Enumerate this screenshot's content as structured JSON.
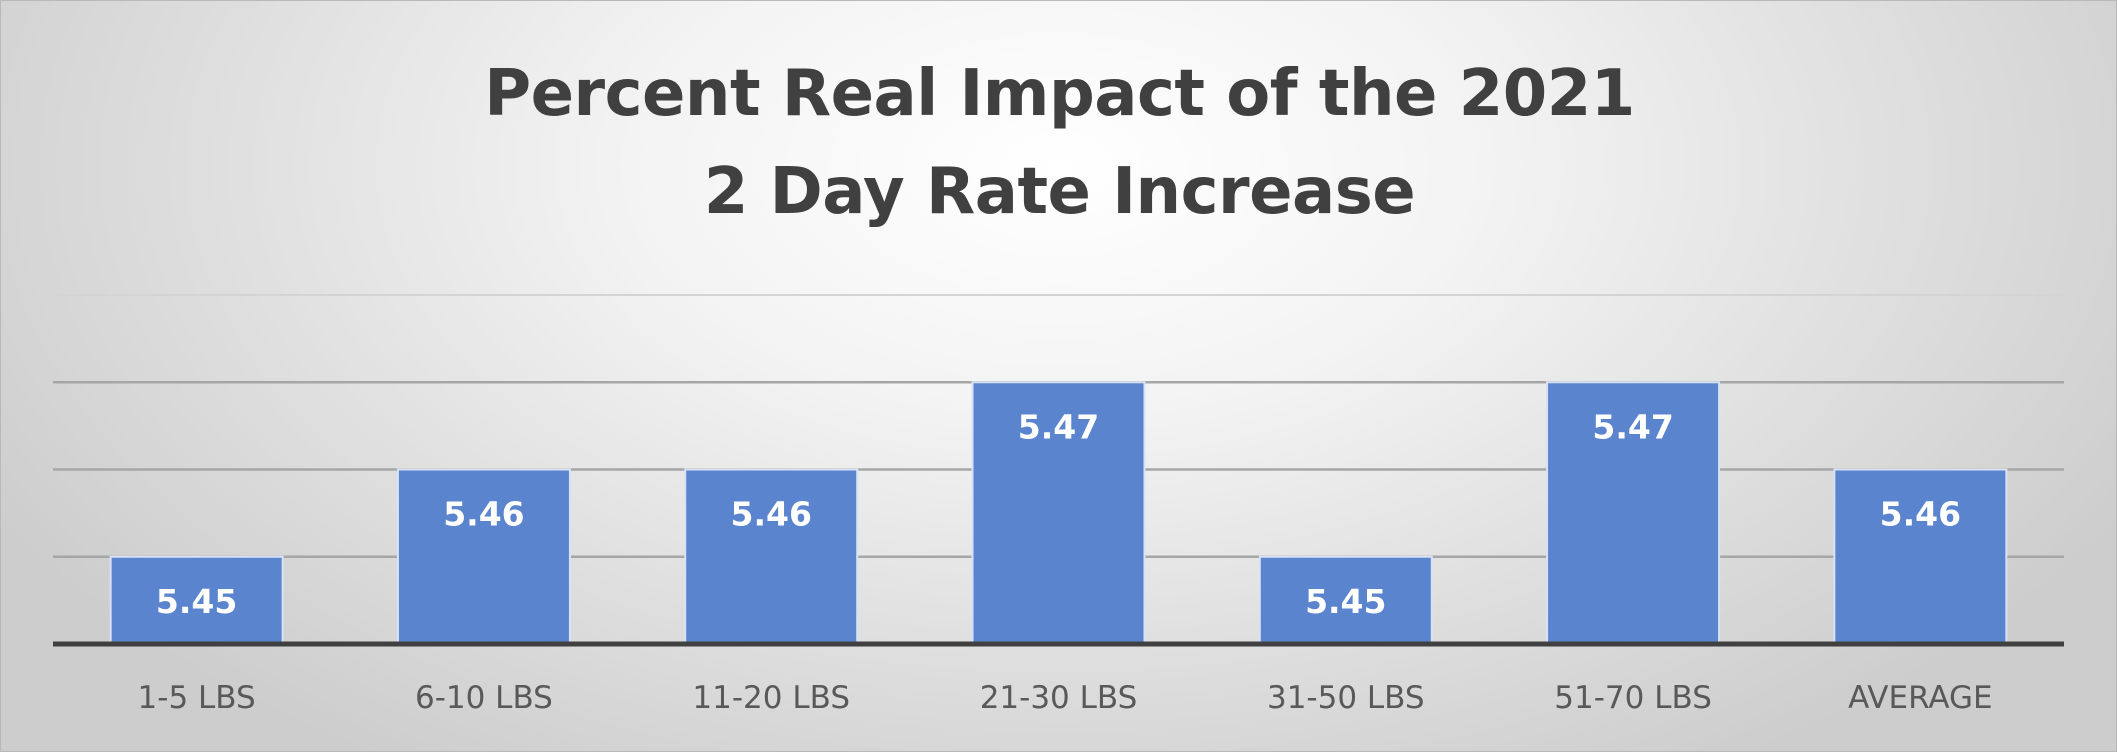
{
  "chart_data": {
    "type": "bar",
    "title_lines": [
      "Percent Real Impact of the 2021",
      "2 Day Rate Increase"
    ],
    "categories": [
      "1-5 LBS",
      "6-10 LBS",
      "11-20 LBS",
      "21-30 LBS",
      "31-50 LBS",
      "51-70 LBS",
      "AVERAGE"
    ],
    "values": [
      5.45,
      5.46,
      5.46,
      5.47,
      5.45,
      5.47,
      5.46
    ],
    "value_labels": [
      "5.45",
      "5.46",
      "5.46",
      "5.47",
      "5.45",
      "5.47",
      "5.46"
    ],
    "ylim": [
      5.44,
      5.48
    ],
    "y_grid_step": 0.01,
    "grid": true,
    "legend": "none",
    "bar_color": "#5b84cf",
    "xlabel": "",
    "ylabel": ""
  }
}
